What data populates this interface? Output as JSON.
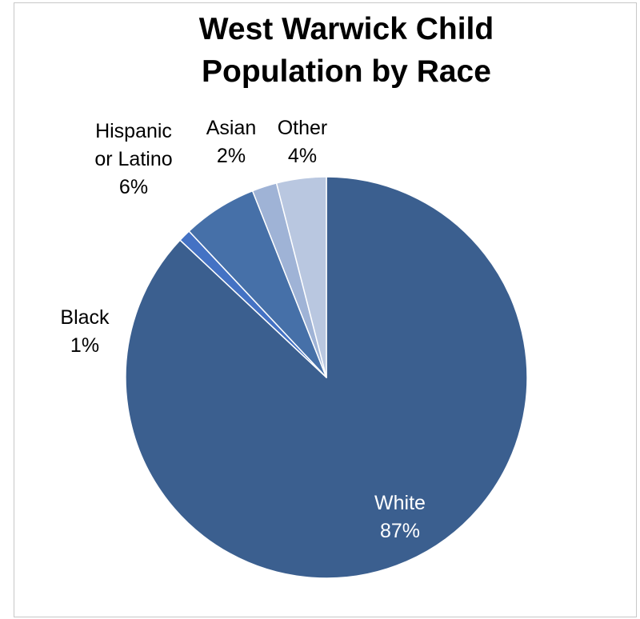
{
  "chart_data": {
    "type": "pie",
    "title": [
      "West Warwick Child",
      "Population by Race"
    ],
    "slices": [
      {
        "name": "White",
        "value": 87,
        "label": "87%",
        "color": "#3b5f8f"
      },
      {
        "name": "Black",
        "value": 1,
        "label": "1%",
        "color": "#4472c4"
      },
      {
        "name": "Hispanic or Latino",
        "value": 6,
        "label": "6%",
        "color": "#4670a8"
      },
      {
        "name": "Asian",
        "value": 2,
        "label": "2%",
        "color": "#9fb3d6"
      },
      {
        "name": "Other",
        "value": 4,
        "label": "4%",
        "color": "#b9c7e0"
      }
    ],
    "label_text": {
      "white": {
        "name": "White",
        "pct": "87%"
      },
      "black": {
        "name": "Black",
        "pct": "1%"
      },
      "hispanic": {
        "line1": "Hispanic",
        "line2": "or Latino",
        "pct": "6%"
      },
      "asian": {
        "name": "Asian",
        "pct": "2%"
      },
      "other": {
        "name": "Other",
        "pct": "4%"
      }
    }
  }
}
